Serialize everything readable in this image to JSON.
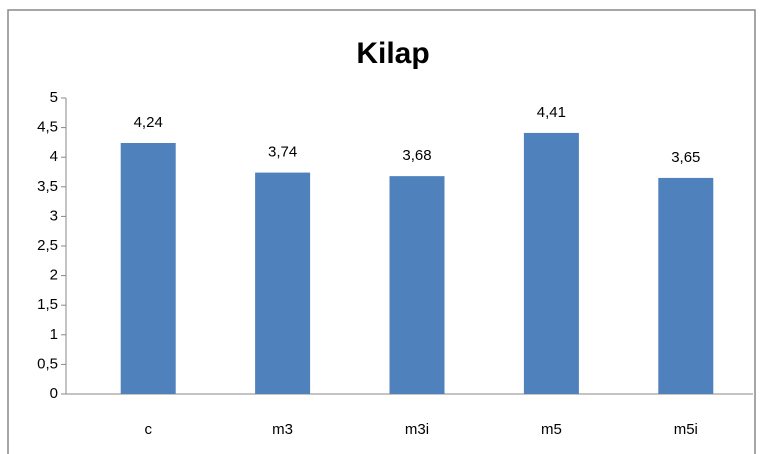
{
  "chart_data": {
    "type": "bar",
    "title": "Kilap",
    "categories": [
      "c",
      "m3",
      "m3i",
      "m5",
      "m5i"
    ],
    "values": [
      4.24,
      3.74,
      3.68,
      4.41,
      3.65
    ],
    "value_labels": [
      "4,24",
      "3,74",
      "3,68",
      "4,41",
      "3,65"
    ],
    "color": "#4f81bd",
    "ylim": [
      0,
      5
    ],
    "yticks": [
      0,
      {
        "value": 0.5,
        "label": "0,5"
      },
      1,
      {
        "value": 1.5,
        "label": "1,5"
      },
      2,
      {
        "value": 2.5,
        "label": "2,5"
      },
      3,
      {
        "value": 3.5,
        "label": "3,5"
      },
      4,
      {
        "value": 4.5,
        "label": "4,5"
      },
      5
    ],
    "grid": false
  }
}
